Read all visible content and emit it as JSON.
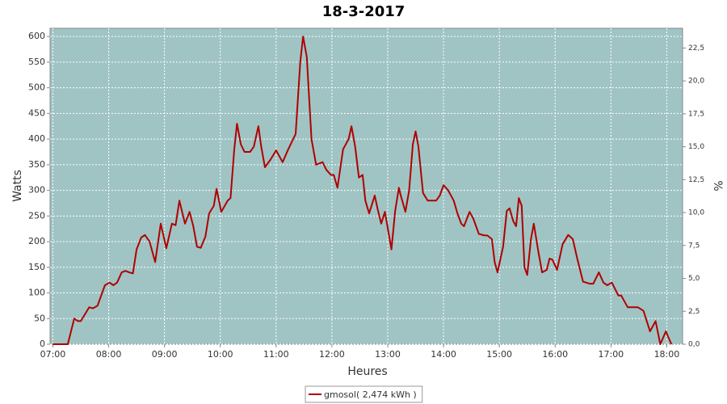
{
  "chart_data": {
    "type": "line",
    "title": "18-3-2017",
    "x_label": "Heures",
    "y_label": "Watts",
    "y2_label": "%",
    "x": [
      "07:00",
      "07:16",
      "07:23",
      "07:27",
      "07:30",
      "07:35",
      "07:39",
      "07:43",
      "07:48",
      "07:52",
      "07:56",
      "08:01",
      "08:05",
      "08:09",
      "08:14",
      "08:18",
      "08:22",
      "08:26",
      "08:30",
      "08:35",
      "08:39",
      "08:44",
      "08:50",
      "08:56",
      "09:02",
      "09:08",
      "09:12",
      "09:16",
      "09:22",
      "09:27",
      "09:31",
      "09:35",
      "09:39",
      "09:44",
      "09:48",
      "09:53",
      "09:56",
      "10:01",
      "10:08",
      "10:11",
      "10:15",
      "10:18",
      "10:22",
      "10:26",
      "10:32",
      "10:36",
      "10:41",
      "10:44",
      "10:48",
      "10:54",
      "11:00",
      "11:07",
      "11:13",
      "11:21",
      "11:26",
      "11:29",
      "11:33",
      "11:38",
      "11:43",
      "11:50",
      "11:54",
      "11:59",
      "12:02",
      "12:06",
      "12:12",
      "12:18",
      "12:21",
      "12:25",
      "12:29",
      "12:33",
      "12:36",
      "12:40",
      "12:46",
      "12:49",
      "12:53",
      "12:57",
      "13:04",
      "13:08",
      "13:12",
      "13:14",
      "13:19",
      "13:23",
      "13:27",
      "13:30",
      "13:33",
      "13:38",
      "13:43",
      "13:52",
      "13:56",
      "14:00",
      "14:05",
      "14:11",
      "14:15",
      "14:19",
      "14:22",
      "14:28",
      "14:32",
      "14:38",
      "14:44",
      "14:47",
      "14:52",
      "14:55",
      "14:58",
      "15:04",
      "15:08",
      "15:11",
      "15:15",
      "15:18",
      "15:21",
      "15:24",
      "15:27",
      "15:30",
      "15:34",
      "15:37",
      "15:42",
      "15:46",
      "15:51",
      "15:54",
      "15:57",
      "16:02",
      "16:08",
      "16:14",
      "16:19",
      "16:24",
      "16:30",
      "16:37",
      "16:41",
      "16:47",
      "16:52",
      "16:56",
      "17:01",
      "17:08",
      "17:11",
      "17:18",
      "17:29",
      "17:35",
      "17:42",
      "17:48",
      "17:53",
      "17:59",
      "18:05"
    ],
    "series": [
      {
        "name": "gmosol( 2,474 kWh )",
        "color": "#b00000",
        "values": [
          0,
          0,
          50,
          45,
          45,
          60,
          72,
          70,
          75,
          95,
          115,
          120,
          115,
          120,
          140,
          143,
          140,
          138,
          185,
          208,
          213,
          200,
          160,
          235,
          187,
          235,
          232,
          280,
          235,
          258,
          230,
          190,
          188,
          210,
          255,
          270,
          303,
          258,
          280,
          285,
          380,
          430,
          390,
          375,
          375,
          385,
          425,
          385,
          345,
          360,
          378,
          355,
          380,
          410,
          550,
          600,
          560,
          400,
          350,
          355,
          340,
          330,
          330,
          305,
          380,
          400,
          425,
          385,
          325,
          330,
          280,
          255,
          290,
          265,
          235,
          258,
          185,
          260,
          305,
          290,
          258,
          300,
          390,
          415,
          385,
          295,
          280,
          280,
          290,
          310,
          300,
          280,
          255,
          235,
          230,
          258,
          245,
          215,
          212,
          212,
          205,
          160,
          140,
          190,
          260,
          265,
          240,
          230,
          285,
          270,
          150,
          135,
          205,
          235,
          180,
          140,
          145,
          167,
          165,
          145,
          195,
          213,
          205,
          165,
          122,
          118,
          118,
          140,
          120,
          115,
          120,
          95,
          95,
          72,
          72,
          65,
          25,
          45,
          0,
          25,
          0
        ]
      }
    ],
    "xlim": [
      "06:57",
      "18:17"
    ],
    "xticks": [
      "07:00",
      "08:00",
      "09:00",
      "10:00",
      "11:00",
      "12:00",
      "13:00",
      "14:00",
      "15:00",
      "16:00",
      "17:00",
      "18:00"
    ],
    "ylim": [
      0,
      616
    ],
    "yticks": [
      0,
      50,
      100,
      150,
      200,
      250,
      300,
      350,
      400,
      450,
      500,
      550,
      600
    ],
    "y2lim": [
      0,
      24
    ],
    "y2ticks": [
      {
        "value": 0,
        "label": "0,0"
      },
      {
        "value": 2.5,
        "label": "2,5"
      },
      {
        "value": 5,
        "label": "5,0"
      },
      {
        "value": 7.5,
        "label": "7,5"
      },
      {
        "value": 10,
        "label": "10,0"
      },
      {
        "value": 12.5,
        "label": "12,5"
      },
      {
        "value": 15,
        "label": "15,0"
      },
      {
        "value": 17.5,
        "label": "17,5"
      },
      {
        "value": 20,
        "label": "20,0"
      },
      {
        "value": 22.5,
        "label": "22,5"
      }
    ],
    "grid": true,
    "plot_background": "#a0c4c4",
    "legend": "bottom"
  }
}
